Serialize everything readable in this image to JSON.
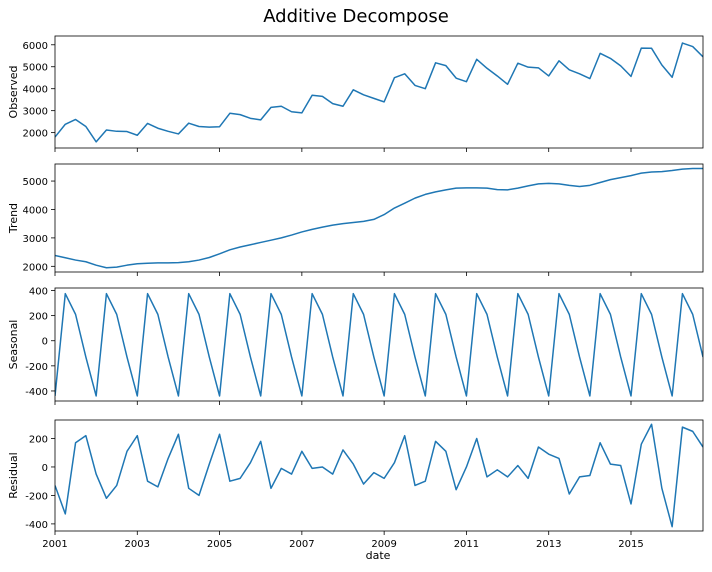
{
  "chart_data": {
    "type": "line",
    "title": "Additive Decompose",
    "xlabel": "date",
    "x_tick_labels": [
      "2001",
      "2003",
      "2005",
      "2007",
      "2009",
      "2011",
      "2013",
      "2015"
    ],
    "x_tick_values": [
      2001,
      2003,
      2005,
      2007,
      2009,
      2011,
      2013,
      2015
    ],
    "x_range": [
      2001,
      2016.75
    ],
    "x_step": 0.25,
    "line_color": "#1f77b4",
    "grid": false,
    "panels": [
      {
        "name": "Observed",
        "ylabel": "Observed",
        "ylim": [
          1300,
          6400
        ],
        "y_ticks": [
          2000,
          3000,
          4000,
          5000,
          6000
        ],
        "values": [
          1800,
          2380,
          2600,
          2280,
          1580,
          2120,
          2060,
          2050,
          1880,
          2420,
          2200,
          2060,
          1940,
          2430,
          2280,
          2250,
          2270,
          2880,
          2820,
          2650,
          2580,
          3150,
          3200,
          2950,
          2900,
          3700,
          3650,
          3320,
          3200,
          3950,
          3720,
          3560,
          3400,
          4500,
          4680,
          4150,
          4000,
          5180,
          5050,
          4480,
          4320,
          5340,
          4930,
          4580,
          4200,
          5160,
          4980,
          4950,
          4580,
          5270,
          4860,
          4680,
          4460,
          5610,
          5380,
          5040,
          4560,
          5850,
          5840,
          5080,
          4520,
          6080,
          5920,
          5450
        ]
      },
      {
        "name": "Trend",
        "ylabel": "Trend",
        "ylim": [
          1800,
          5600
        ],
        "y_ticks": [
          2000,
          3000,
          4000,
          5000
        ],
        "values": [
          2380,
          2300,
          2220,
          2160,
          2040,
          1950,
          1970,
          2040,
          2090,
          2110,
          2120,
          2120,
          2130,
          2160,
          2220,
          2310,
          2440,
          2580,
          2680,
          2760,
          2840,
          2920,
          3000,
          3100,
          3210,
          3300,
          3380,
          3450,
          3500,
          3540,
          3580,
          3650,
          3820,
          4050,
          4220,
          4400,
          4530,
          4620,
          4690,
          4750,
          4760,
          4760,
          4750,
          4700,
          4690,
          4750,
          4830,
          4900,
          4920,
          4900,
          4850,
          4810,
          4850,
          4950,
          5050,
          5120,
          5190,
          5280,
          5320,
          5330,
          5370,
          5420,
          5440,
          5440
        ]
      },
      {
        "name": "Seasonal",
        "ylabel": "Seasonal",
        "ylim": [
          -480,
          420
        ],
        "y_ticks": [
          -400,
          -200,
          0,
          200,
          400
        ],
        "values": [
          -440,
          375,
          210,
          -130,
          -440,
          375,
          210,
          -130,
          -440,
          375,
          210,
          -130,
          -440,
          375,
          210,
          -130,
          -440,
          375,
          210,
          -130,
          -440,
          375,
          210,
          -130,
          -440,
          375,
          210,
          -130,
          -440,
          375,
          210,
          -130,
          -440,
          375,
          210,
          -130,
          -440,
          375,
          210,
          -130,
          -440,
          375,
          210,
          -130,
          -440,
          375,
          210,
          -130,
          -440,
          375,
          210,
          -130,
          -440,
          375,
          210,
          -130,
          -440,
          375,
          210,
          -130,
          -440,
          375,
          210,
          -130
        ]
      },
      {
        "name": "Residual",
        "ylabel": "Residual",
        "ylim": [
          -450,
          330
        ],
        "y_ticks": [
          -400,
          -200,
          0,
          200
        ],
        "values": [
          -130,
          -330,
          170,
          220,
          -50,
          -220,
          -130,
          110,
          220,
          -100,
          -140,
          60,
          230,
          -150,
          -200,
          20,
          230,
          -100,
          -80,
          30,
          180,
          -150,
          -10,
          -50,
          110,
          -10,
          0,
          -50,
          120,
          20,
          -120,
          -40,
          -80,
          30,
          220,
          -130,
          -100,
          180,
          110,
          -160,
          0,
          200,
          -70,
          -20,
          -70,
          10,
          -80,
          140,
          90,
          60,
          -190,
          -70,
          -60,
          170,
          20,
          10,
          -260,
          160,
          300,
          -150,
          -420,
          280,
          250,
          140
        ]
      }
    ]
  }
}
